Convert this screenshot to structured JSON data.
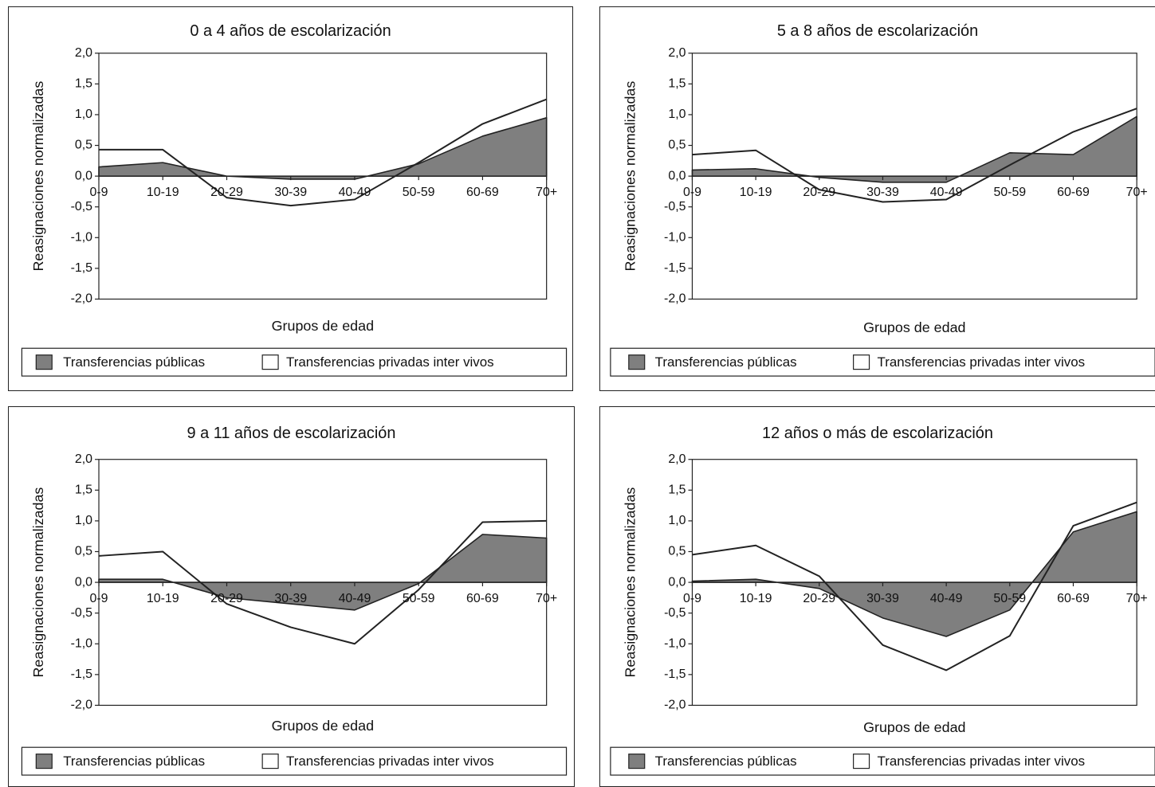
{
  "chart_data": [
    {
      "type": "area",
      "title": "0 a 4 años de escolarización",
      "xlabel": "Grupos de edad",
      "ylabel": "Reasignaciones normalizadas",
      "categories": [
        "0-9",
        "10-19",
        "20-29",
        "30-39",
        "40-49",
        "50-59",
        "60-69",
        "70+"
      ],
      "yticks": [
        "2,0",
        "1,5",
        "1,0",
        "0,5",
        "0,0",
        "-0,5",
        "-1,0",
        "-1,5",
        "-2,0"
      ],
      "ylim": [
        -2,
        2
      ],
      "series": [
        {
          "name": "Transferencias públicas",
          "style": "area",
          "values": [
            0.15,
            0.22,
            0.0,
            -0.05,
            -0.05,
            0.2,
            0.65,
            0.95
          ]
        },
        {
          "name": "Transferencias privadas inter vivos",
          "style": "line",
          "values": [
            0.43,
            0.43,
            -0.35,
            -0.48,
            -0.38,
            0.22,
            0.85,
            1.25
          ]
        }
      ],
      "legend": "bottom"
    },
    {
      "type": "area",
      "title": "5 a 8 años de escolarización",
      "xlabel": "Grupos de edad",
      "ylabel": "Reasignaciones normalizadas",
      "categories": [
        "0-9",
        "10-19",
        "20-29",
        "30-39",
        "40-49",
        "50-59",
        "60-69",
        "70+"
      ],
      "yticks": [
        "2,0",
        "1,5",
        "1,0",
        "0,5",
        "0,0",
        "-0,5",
        "-1,0",
        "-1,5",
        "-2,0"
      ],
      "ylim": [
        -2,
        2
      ],
      "series": [
        {
          "name": "Transferencias públicas",
          "style": "area",
          "values": [
            0.1,
            0.12,
            -0.02,
            -0.1,
            -0.1,
            0.38,
            0.35,
            0.97
          ]
        },
        {
          "name": "Transferencias privadas inter vivos",
          "style": "line",
          "values": [
            0.35,
            0.42,
            -0.22,
            -0.42,
            -0.38,
            0.18,
            0.72,
            1.1
          ]
        }
      ],
      "legend": "bottom"
    },
    {
      "type": "area",
      "title": "9 a 11 años de escolarización",
      "xlabel": "Grupos de edad",
      "ylabel": "Reasignaciones normalizadas",
      "categories": [
        "0-9",
        "10-19",
        "20-29",
        "30-39",
        "40-49",
        "50-59",
        "60-69",
        "70+"
      ],
      "yticks": [
        "2,0",
        "1,5",
        "1,0",
        "0,5",
        "0,0",
        "-0,5",
        "-1,0",
        "-1,5",
        "-2,0"
      ],
      "ylim": [
        -2,
        2
      ],
      "series": [
        {
          "name": "Transferencias públicas",
          "style": "area",
          "values": [
            0.05,
            0.05,
            -0.25,
            -0.35,
            -0.45,
            -0.02,
            0.78,
            0.72
          ]
        },
        {
          "name": "Transferencias privadas inter vivos",
          "style": "line",
          "values": [
            0.43,
            0.5,
            -0.35,
            -0.73,
            -1.0,
            -0.12,
            0.98,
            1.0
          ]
        }
      ],
      "legend": "bottom"
    },
    {
      "type": "area",
      "title": "12 años o más de escolarización",
      "xlabel": "Grupos de edad",
      "ylabel": "Reasignaciones normalizadas",
      "categories": [
        "0-9",
        "10-19",
        "20-29",
        "30-39",
        "40-49",
        "50-59",
        "60-69",
        "70+"
      ],
      "yticks": [
        "2,0",
        "1,5",
        "1,0",
        "0,5",
        "0,0",
        "-0,5",
        "-1,0",
        "-1,5",
        "-2,0"
      ],
      "ylim": [
        -2,
        2
      ],
      "series": [
        {
          "name": "Transferencias públicas",
          "style": "area",
          "values": [
            0.02,
            0.05,
            -0.1,
            -0.58,
            -0.88,
            -0.45,
            0.82,
            1.15
          ]
        },
        {
          "name": "Transferencias privadas inter vivos",
          "style": "line",
          "values": [
            0.45,
            0.6,
            0.1,
            -1.02,
            -1.43,
            -0.87,
            0.92,
            1.3
          ]
        }
      ],
      "legend": "bottom"
    }
  ],
  "colors": {
    "public_fill": "#7f7f7f",
    "private_fill": "#ffffff",
    "line": "#222222"
  }
}
